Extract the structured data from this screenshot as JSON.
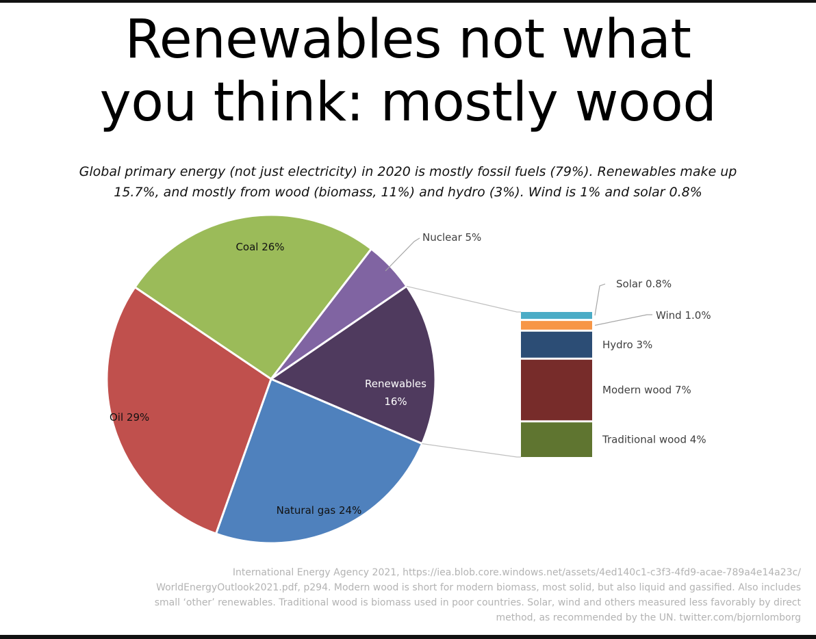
{
  "title_lines": [
    "Renewables not what",
    "you think: mostly wood"
  ],
  "subtitle_lines": [
    "Global primary energy (not just electricity) in 2020 is mostly fossil fuels (79%). Renewables make up",
    "15.7%, and mostly from wood (biomass, 11%) and hydro (3%). Wind is 1% and solar 0.8%"
  ],
  "source_lines": [
    "International Energy Agency 2021, https://iea.blob.core.windows.net/assets/4ed140c1-c3f3-4fd9-acae-789a4e14a23c/",
    "WorldEnergyOutlook2021.pdf, p294. Modern wood is short for modern biomass, most solid, but also liquid and gassified. Also includes",
    "small ‘other’ renewables. Traditional wood is biomass used in poor countries. Solar, wind and others measured less favorably by direct",
    "method, as recommended by the UN. twitter.com/bjornlomborg"
  ],
  "chart_data": {
    "type": "pie",
    "title": "Renewables not what you think: mostly wood",
    "slices": [
      {
        "name": "Coal",
        "value": 26,
        "label": "Coal 26%",
        "color": "#9bbb59"
      },
      {
        "name": "Nuclear",
        "value": 5,
        "label": "Nuclear 5%",
        "color": "#8064a2"
      },
      {
        "name": "Renewables",
        "value": 16,
        "label_lines": [
          "Renewables",
          "16%"
        ],
        "color": "#4f3a5e"
      },
      {
        "name": "Natural gas",
        "value": 24,
        "label": "Natural gas 24%",
        "color": "#4f81bd"
      },
      {
        "name": "Oil",
        "value": 29,
        "label": "Oil 29%",
        "color": "#c0504d"
      }
    ],
    "renewables_breakdown": {
      "type": "stacked-bar",
      "segments": [
        {
          "name": "Solar",
          "value": 0.8,
          "label": "Solar 0.8%",
          "color": "#4bacc6"
        },
        {
          "name": "Wind",
          "value": 1.0,
          "label": "Wind 1.0%",
          "color": "#f79646"
        },
        {
          "name": "Hydro",
          "value": 3,
          "label": "Hydro 3%",
          "color": "#2c4d75"
        },
        {
          "name": "Modern wood",
          "value": 7,
          "label": "Modern wood 7%",
          "color": "#772c2a"
        },
        {
          "name": "Traditional wood",
          "value": 4,
          "label": "Traditional wood 4%",
          "color": "#5f7530"
        }
      ]
    }
  }
}
